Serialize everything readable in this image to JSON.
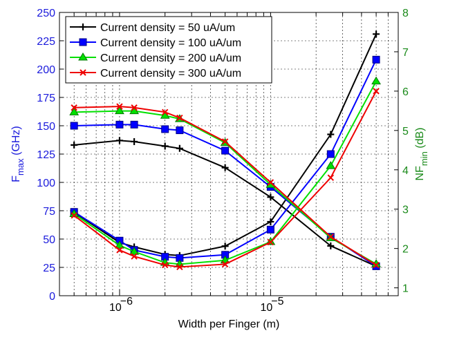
{
  "chart_data": {
    "type": "line",
    "xlabel": "Width per Finger (m)",
    "xscale": "log",
    "xlim": [
      4e-07,
      7e-05
    ],
    "x_ticks": [
      {
        "value": 1e-06,
        "label": "10",
        "exp": "−6"
      },
      {
        "value": 1e-05,
        "label": "10",
        "exp": "−5"
      }
    ],
    "ylabel_left": {
      "main": "F",
      "sub": "max",
      "rest": " (GHz)"
    },
    "ylim_left": [
      0,
      250
    ],
    "yticks_left": [
      "0",
      "25",
      "50",
      "75",
      "100",
      "125",
      "150",
      "175",
      "200",
      "225",
      "250"
    ],
    "ylabel_right": {
      "main": "NF",
      "sub": "min",
      "rest": " (dB)"
    },
    "ylim_right": [
      0.8,
      8
    ],
    "yticks_right": [
      "1",
      "2",
      "3",
      "4",
      "5",
      "6",
      "7",
      "8"
    ],
    "grid": true,
    "legend_position": "top-left",
    "colors": {
      "left_axis": "#1a1adc",
      "right_axis": "#1a8a1a"
    },
    "x": [
      5e-07,
      1e-06,
      1.25e-06,
      2e-06,
      2.5e-06,
      5e-06,
      1e-05,
      2.5e-05,
      5e-05
    ],
    "series": [
      {
        "name": "Current density = 50  uA/um",
        "color": "#000000",
        "marker": "plus",
        "fmax": [
          133,
          137,
          136,
          132,
          130,
          113,
          87,
          44,
          26
        ],
        "nfmin": [
          2.92,
          2.15,
          2.04,
          1.85,
          1.82,
          2.06,
          2.68,
          4.9,
          7.45
        ]
      },
      {
        "name": "Current density = 100 uA/um",
        "color": "#0000ff",
        "marker": "square",
        "fmax": [
          150,
          151,
          151,
          147,
          146,
          128,
          96,
          52,
          26
        ],
        "nfmin": [
          2.93,
          2.2,
          1.96,
          1.79,
          1.76,
          1.84,
          2.48,
          4.4,
          6.8
        ]
      },
      {
        "name": "Current density = 200 uA/um",
        "color": "#00e000",
        "marker": "triangle",
        "fmax": [
          162,
          163,
          163,
          159,
          156,
          135,
          98,
          51,
          28
        ],
        "nfmin": [
          2.88,
          2.08,
          1.92,
          1.64,
          1.6,
          1.7,
          2.17,
          4.1,
          6.25
        ]
      },
      {
        "name": "Current density = 300 uA/um",
        "color": "#ee0000",
        "marker": "x",
        "fmax": [
          166,
          167,
          166,
          162,
          157,
          136,
          100,
          52,
          27
        ],
        "nfmin": [
          2.84,
          1.96,
          1.8,
          1.58,
          1.53,
          1.6,
          2.16,
          3.8,
          6.0
        ]
      }
    ]
  }
}
